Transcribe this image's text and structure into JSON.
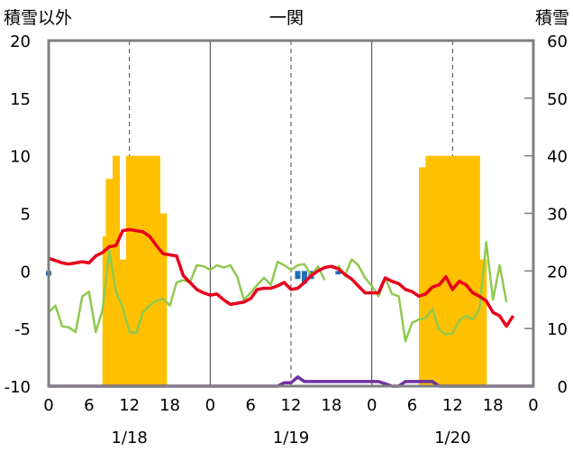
{
  "chart_data": {
    "type": "line",
    "title": "一関",
    "left_axis_label": "積雪以外",
    "right_axis_label": "積雪",
    "left_ylim": [
      -10,
      20
    ],
    "left_yticks": [
      20,
      15,
      10,
      5,
      0,
      -5,
      -10
    ],
    "right_ylim": [
      0,
      60
    ],
    "right_yticks": [
      60,
      50,
      40,
      30,
      20,
      10,
      0
    ],
    "x_range_hours": [
      0,
      72
    ],
    "hour_ticks": [
      "0",
      "6",
      "12",
      "18",
      "0",
      "6",
      "12",
      "18",
      "0",
      "6",
      "12",
      "18",
      "0"
    ],
    "date_labels": [
      {
        "text": "1/18",
        "hour": 12
      },
      {
        "text": "1/19",
        "hour": 36
      },
      {
        "text": "1/20",
        "hour": 60
      }
    ],
    "grid": {
      "solid_vertical_hours": [
        24,
        48
      ],
      "dashed_vertical_hours": [
        12,
        36,
        60
      ]
    },
    "colors": {
      "temperature": "#e8001c",
      "green_series": "#8fc94e",
      "snow_depth": "#ffc000",
      "precipitation": "#1f6db8",
      "sunshine": "#7030a0",
      "frame": "#808080"
    },
    "snow_depth_bars": [
      {
        "hour": 8.5,
        "value": 26
      },
      {
        "hour": 9,
        "value": 36
      },
      {
        "hour": 10,
        "value": 40
      },
      {
        "hour": 11,
        "value": 22
      },
      {
        "hour": 12,
        "value": 40
      },
      {
        "hour": 13,
        "value": 40
      },
      {
        "hour": 14,
        "value": 40
      },
      {
        "hour": 15,
        "value": 40
      },
      {
        "hour": 16,
        "value": 40
      },
      {
        "hour": 17,
        "value": 30
      },
      {
        "hour": 55.5,
        "value": 38
      },
      {
        "hour": 56.5,
        "value": 40
      },
      {
        "hour": 57.5,
        "value": 40
      },
      {
        "hour": 58.5,
        "value": 40
      },
      {
        "hour": 59.5,
        "value": 40
      },
      {
        "hour": 60.5,
        "value": 40
      },
      {
        "hour": 61.5,
        "value": 40
      },
      {
        "hour": 62.5,
        "value": 40
      },
      {
        "hour": 63.5,
        "value": 40
      },
      {
        "hour": 64.5,
        "value": 22
      }
    ],
    "temperature": [
      [
        0,
        1.1
      ],
      [
        1,
        0.9
      ],
      [
        2,
        0.7
      ],
      [
        3,
        0.6
      ],
      [
        4,
        0.7
      ],
      [
        5,
        0.8
      ],
      [
        6,
        0.7
      ],
      [
        7,
        1.3
      ],
      [
        8,
        1.6
      ],
      [
        9,
        2.1
      ],
      [
        10,
        2.2
      ],
      [
        11,
        3.5
      ],
      [
        12,
        3.6
      ],
      [
        13,
        3.5
      ],
      [
        14,
        3.4
      ],
      [
        15,
        3.0
      ],
      [
        16,
        2.2
      ],
      [
        17,
        1.5
      ],
      [
        18,
        1.4
      ],
      [
        19,
        1.3
      ],
      [
        20,
        -0.4
      ],
      [
        21,
        -1.0
      ],
      [
        22,
        -1.6
      ],
      [
        23,
        -1.9
      ],
      [
        24,
        -2.1
      ],
      [
        25,
        -2.0
      ],
      [
        26,
        -2.5
      ],
      [
        27,
        -2.9
      ],
      [
        28,
        -2.8
      ],
      [
        29,
        -2.7
      ],
      [
        30,
        -2.4
      ],
      [
        31,
        -1.6
      ],
      [
        32,
        -1.5
      ],
      [
        33,
        -1.5
      ],
      [
        34,
        -1.3
      ],
      [
        35,
        -1.0
      ],
      [
        36,
        -1.6
      ],
      [
        37,
        -1.5
      ],
      [
        38,
        -1.0
      ],
      [
        39,
        -0.4
      ],
      [
        40,
        0.0
      ],
      [
        41,
        0.3
      ],
      [
        42,
        0.4
      ],
      [
        43,
        0.2
      ],
      [
        44,
        -0.3
      ],
      [
        45,
        -0.7
      ],
      [
        46,
        -1.3
      ],
      [
        47,
        -1.9
      ],
      [
        48,
        -1.9
      ],
      [
        49,
        -1.9
      ],
      [
        50,
        -0.6
      ],
      [
        51,
        -0.9
      ],
      [
        52,
        -1.1
      ],
      [
        53,
        -1.6
      ],
      [
        54,
        -1.8
      ],
      [
        55,
        -2.2
      ],
      [
        56,
        -2.0
      ],
      [
        57,
        -1.4
      ],
      [
        58,
        -1.2
      ],
      [
        59,
        -0.5
      ],
      [
        60,
        -1.6
      ],
      [
        61,
        -0.9
      ],
      [
        62,
        -1.2
      ],
      [
        63,
        -1.9
      ],
      [
        64,
        -2.2
      ],
      [
        65,
        -2.6
      ],
      [
        66,
        -3.6
      ],
      [
        67,
        -3.9
      ],
      [
        68,
        -4.8
      ],
      [
        69,
        -3.9
      ]
    ],
    "green_series": [
      [
        0,
        -3.6
      ],
      [
        1,
        -3.0
      ],
      [
        2,
        -4.8
      ],
      [
        3,
        -4.9
      ],
      [
        4,
        -5.3
      ],
      [
        5,
        -2.2
      ],
      [
        6,
        -1.8
      ],
      [
        7,
        -5.3
      ],
      [
        8,
        -3.4
      ],
      [
        9,
        1.8
      ],
      [
        10,
        -1.8
      ],
      [
        11,
        -3.2
      ],
      [
        12,
        -5.3
      ],
      [
        13,
        -5.4
      ],
      [
        14,
        -3.6
      ],
      [
        15,
        -3.0
      ],
      [
        16,
        -2.6
      ],
      [
        17,
        -2.4
      ],
      [
        18,
        -3.0
      ],
      [
        19,
        -1.0
      ],
      [
        20,
        -0.8
      ],
      [
        21,
        -1.0
      ],
      [
        22,
        0.5
      ],
      [
        23,
        0.4
      ],
      [
        24,
        0.1
      ],
      [
        25,
        0.5
      ],
      [
        26,
        0.3
      ],
      [
        27,
        0.5
      ],
      [
        28,
        -0.5
      ],
      [
        29,
        -2.5
      ],
      [
        30,
        -1.9
      ],
      [
        31,
        -1.2
      ],
      [
        32,
        -0.6
      ],
      [
        33,
        -1.2
      ],
      [
        34,
        0.8
      ],
      [
        35,
        0.5
      ],
      [
        36,
        0.1
      ],
      [
        37,
        0.5
      ],
      [
        38,
        0.6
      ],
      [
        39,
        -0.4
      ],
      [
        40,
        0.4
      ],
      [
        41,
        -0.8
      ],
      [
        null,
        null
      ],
      [
        43,
        0.5
      ],
      [
        44,
        -0.4
      ],
      [
        45,
        1.0
      ],
      [
        46,
        0.5
      ],
      [
        47,
        -0.6
      ],
      [
        48,
        -1.3
      ],
      [
        49,
        -2.2
      ],
      [
        50,
        -0.6
      ],
      [
        51,
        -2.0
      ],
      [
        52,
        -2.2
      ],
      [
        53,
        -6.1
      ],
      [
        54,
        -4.5
      ],
      [
        55,
        -4.2
      ],
      [
        56,
        -4.1
      ],
      [
        57,
        -3.3
      ],
      [
        58,
        -5.1
      ],
      [
        59,
        -5.5
      ],
      [
        60,
        -5.4
      ],
      [
        61,
        -4.3
      ],
      [
        62,
        -3.9
      ],
      [
        63,
        -4.2
      ],
      [
        64,
        -3.3
      ],
      [
        65,
        2.5
      ],
      [
        66,
        -2.5
      ],
      [
        67,
        0.5
      ],
      [
        68,
        -2.7
      ]
    ],
    "precipitation_bars": [
      {
        "hour": 0,
        "value": -0.4
      },
      {
        "hour": 37,
        "value": -0.7
      },
      {
        "hour": 38,
        "value": -1.1
      },
      {
        "hour": 39,
        "value": -0.7
      },
      {
        "hour": 43,
        "value": -0.3
      }
    ],
    "sunshine": [
      [
        0,
        -10
      ],
      [
        34,
        -10
      ],
      [
        35,
        -9.7
      ],
      [
        36,
        -9.7
      ],
      [
        37,
        -9.2
      ],
      [
        38,
        -9.6
      ],
      [
        39,
        -9.6
      ],
      [
        40,
        -9.6
      ],
      [
        41,
        -9.6
      ],
      [
        42,
        -9.6
      ],
      [
        43,
        -9.6
      ],
      [
        44,
        -9.6
      ],
      [
        45,
        -9.6
      ],
      [
        46,
        -9.6
      ],
      [
        47,
        -9.6
      ],
      [
        48,
        -9.6
      ],
      [
        49,
        -9.6
      ],
      [
        50,
        -9.8
      ],
      [
        51,
        -10
      ],
      [
        52,
        -10
      ],
      [
        53,
        -9.6
      ],
      [
        54,
        -9.6
      ],
      [
        55,
        -9.6
      ],
      [
        56,
        -9.6
      ],
      [
        57,
        -9.6
      ],
      [
        58,
        -10
      ],
      [
        72,
        -10
      ]
    ]
  }
}
